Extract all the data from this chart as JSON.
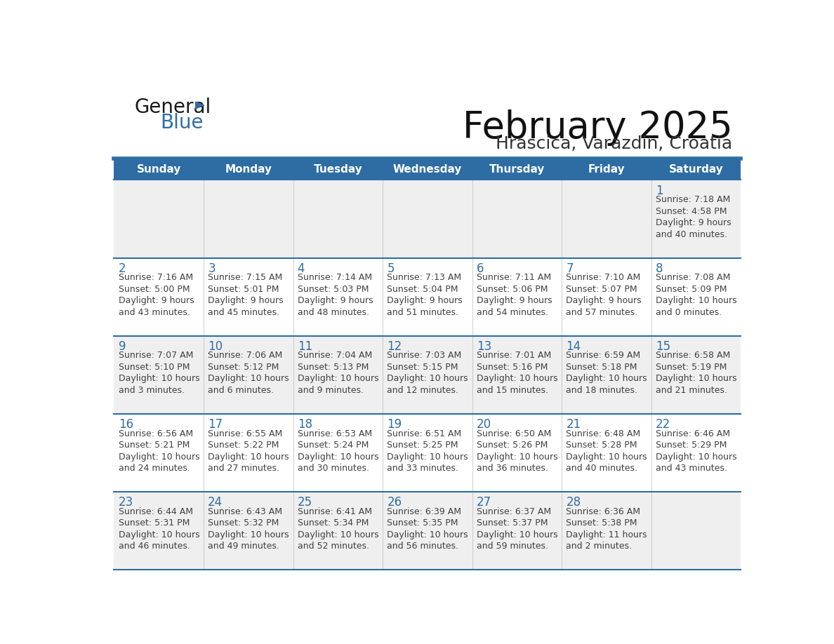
{
  "title": "February 2025",
  "subtitle": "Hrascica, Varazdin, Croatia",
  "header_bg": "#2E6DA4",
  "header_text_color": "#FFFFFF",
  "cell_bg_odd": "#EFEFEF",
  "cell_bg_even": "#FFFFFF",
  "day_number_color": "#2E6DA4",
  "text_color": "#404040",
  "line_color": "#2E6DA4",
  "days_of_week": [
    "Sunday",
    "Monday",
    "Tuesday",
    "Wednesday",
    "Thursday",
    "Friday",
    "Saturday"
  ],
  "weeks": [
    [
      {
        "day": null,
        "info": null
      },
      {
        "day": null,
        "info": null
      },
      {
        "day": null,
        "info": null
      },
      {
        "day": null,
        "info": null
      },
      {
        "day": null,
        "info": null
      },
      {
        "day": null,
        "info": null
      },
      {
        "day": 1,
        "info": "Sunrise: 7:18 AM\nSunset: 4:58 PM\nDaylight: 9 hours\nand 40 minutes."
      }
    ],
    [
      {
        "day": 2,
        "info": "Sunrise: 7:16 AM\nSunset: 5:00 PM\nDaylight: 9 hours\nand 43 minutes."
      },
      {
        "day": 3,
        "info": "Sunrise: 7:15 AM\nSunset: 5:01 PM\nDaylight: 9 hours\nand 45 minutes."
      },
      {
        "day": 4,
        "info": "Sunrise: 7:14 AM\nSunset: 5:03 PM\nDaylight: 9 hours\nand 48 minutes."
      },
      {
        "day": 5,
        "info": "Sunrise: 7:13 AM\nSunset: 5:04 PM\nDaylight: 9 hours\nand 51 minutes."
      },
      {
        "day": 6,
        "info": "Sunrise: 7:11 AM\nSunset: 5:06 PM\nDaylight: 9 hours\nand 54 minutes."
      },
      {
        "day": 7,
        "info": "Sunrise: 7:10 AM\nSunset: 5:07 PM\nDaylight: 9 hours\nand 57 minutes."
      },
      {
        "day": 8,
        "info": "Sunrise: 7:08 AM\nSunset: 5:09 PM\nDaylight: 10 hours\nand 0 minutes."
      }
    ],
    [
      {
        "day": 9,
        "info": "Sunrise: 7:07 AM\nSunset: 5:10 PM\nDaylight: 10 hours\nand 3 minutes."
      },
      {
        "day": 10,
        "info": "Sunrise: 7:06 AM\nSunset: 5:12 PM\nDaylight: 10 hours\nand 6 minutes."
      },
      {
        "day": 11,
        "info": "Sunrise: 7:04 AM\nSunset: 5:13 PM\nDaylight: 10 hours\nand 9 minutes."
      },
      {
        "day": 12,
        "info": "Sunrise: 7:03 AM\nSunset: 5:15 PM\nDaylight: 10 hours\nand 12 minutes."
      },
      {
        "day": 13,
        "info": "Sunrise: 7:01 AM\nSunset: 5:16 PM\nDaylight: 10 hours\nand 15 minutes."
      },
      {
        "day": 14,
        "info": "Sunrise: 6:59 AM\nSunset: 5:18 PM\nDaylight: 10 hours\nand 18 minutes."
      },
      {
        "day": 15,
        "info": "Sunrise: 6:58 AM\nSunset: 5:19 PM\nDaylight: 10 hours\nand 21 minutes."
      }
    ],
    [
      {
        "day": 16,
        "info": "Sunrise: 6:56 AM\nSunset: 5:21 PM\nDaylight: 10 hours\nand 24 minutes."
      },
      {
        "day": 17,
        "info": "Sunrise: 6:55 AM\nSunset: 5:22 PM\nDaylight: 10 hours\nand 27 minutes."
      },
      {
        "day": 18,
        "info": "Sunrise: 6:53 AM\nSunset: 5:24 PM\nDaylight: 10 hours\nand 30 minutes."
      },
      {
        "day": 19,
        "info": "Sunrise: 6:51 AM\nSunset: 5:25 PM\nDaylight: 10 hours\nand 33 minutes."
      },
      {
        "day": 20,
        "info": "Sunrise: 6:50 AM\nSunset: 5:26 PM\nDaylight: 10 hours\nand 36 minutes."
      },
      {
        "day": 21,
        "info": "Sunrise: 6:48 AM\nSunset: 5:28 PM\nDaylight: 10 hours\nand 40 minutes."
      },
      {
        "day": 22,
        "info": "Sunrise: 6:46 AM\nSunset: 5:29 PM\nDaylight: 10 hours\nand 43 minutes."
      }
    ],
    [
      {
        "day": 23,
        "info": "Sunrise: 6:44 AM\nSunset: 5:31 PM\nDaylight: 10 hours\nand 46 minutes."
      },
      {
        "day": 24,
        "info": "Sunrise: 6:43 AM\nSunset: 5:32 PM\nDaylight: 10 hours\nand 49 minutes."
      },
      {
        "day": 25,
        "info": "Sunrise: 6:41 AM\nSunset: 5:34 PM\nDaylight: 10 hours\nand 52 minutes."
      },
      {
        "day": 26,
        "info": "Sunrise: 6:39 AM\nSunset: 5:35 PM\nDaylight: 10 hours\nand 56 minutes."
      },
      {
        "day": 27,
        "info": "Sunrise: 6:37 AM\nSunset: 5:37 PM\nDaylight: 10 hours\nand 59 minutes."
      },
      {
        "day": 28,
        "info": "Sunrise: 6:36 AM\nSunset: 5:38 PM\nDaylight: 11 hours\nand 2 minutes."
      },
      {
        "day": null,
        "info": null
      }
    ]
  ],
  "logo_text_general": "General",
  "logo_text_blue": "Blue",
  "logo_color_general": "#1a1a1a",
  "logo_color_blue": "#2E6DA4",
  "logo_triangle_color": "#2E6DA4",
  "title_fontsize": 38,
  "subtitle_fontsize": 18,
  "header_fontsize": 11,
  "day_number_fontsize": 12,
  "cell_text_fontsize": 9
}
